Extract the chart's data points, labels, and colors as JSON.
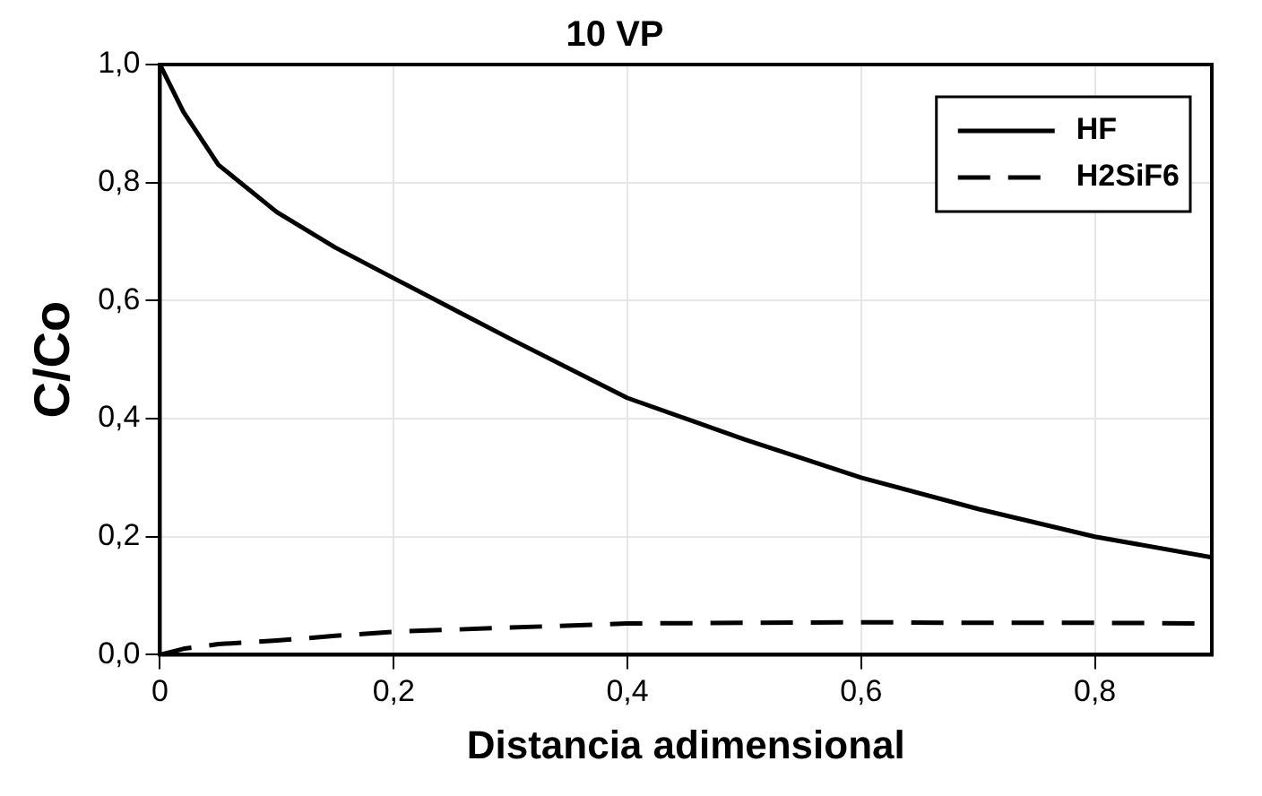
{
  "chart_data": {
    "type": "line",
    "title": "10 VP",
    "xlabel": "Distancia adimensional",
    "ylabel": "C/Co",
    "x": [
      0,
      0.02,
      0.05,
      0.1,
      0.15,
      0.2,
      0.3,
      0.4,
      0.5,
      0.6,
      0.7,
      0.8,
      0.9
    ],
    "series": [
      {
        "name": "HF",
        "color": "#000000",
        "line_style": "solid",
        "values": [
          1.0,
          0.92,
          0.83,
          0.75,
          0.69,
          0.638,
          0.535,
          0.435,
          0.365,
          0.3,
          0.247,
          0.2,
          0.165
        ]
      },
      {
        "name": "H2SiF6",
        "color": "#000000",
        "line_style": "dashed",
        "values": [
          0,
          0.01,
          0.018,
          0.024,
          0.032,
          0.039,
          0.046,
          0.053,
          0.054,
          0.055,
          0.054,
          0.054,
          0.053
        ]
      }
    ],
    "xlim": [
      0,
      0.9
    ],
    "xticks": [
      0,
      {
        "value": 0.2,
        "label": "0,2"
      },
      {
        "value": 0.4,
        "label": "0,4"
      },
      {
        "value": 0.6,
        "label": "0,6"
      },
      {
        "value": 0.8,
        "label": "0,8"
      }
    ],
    "ylim": [
      0,
      1
    ],
    "yticks": [
      {
        "value": 0,
        "label": "0,0"
      },
      {
        "value": 0.2,
        "label": "0,2"
      },
      {
        "value": 0.4,
        "label": "0,4"
      },
      {
        "value": 0.6,
        "label": "0,6"
      },
      {
        "value": 0.8,
        "label": "0,8"
      },
      {
        "value": 1,
        "label": "1,0"
      }
    ],
    "grid": true,
    "legend": "top right",
    "marker": "none"
  }
}
